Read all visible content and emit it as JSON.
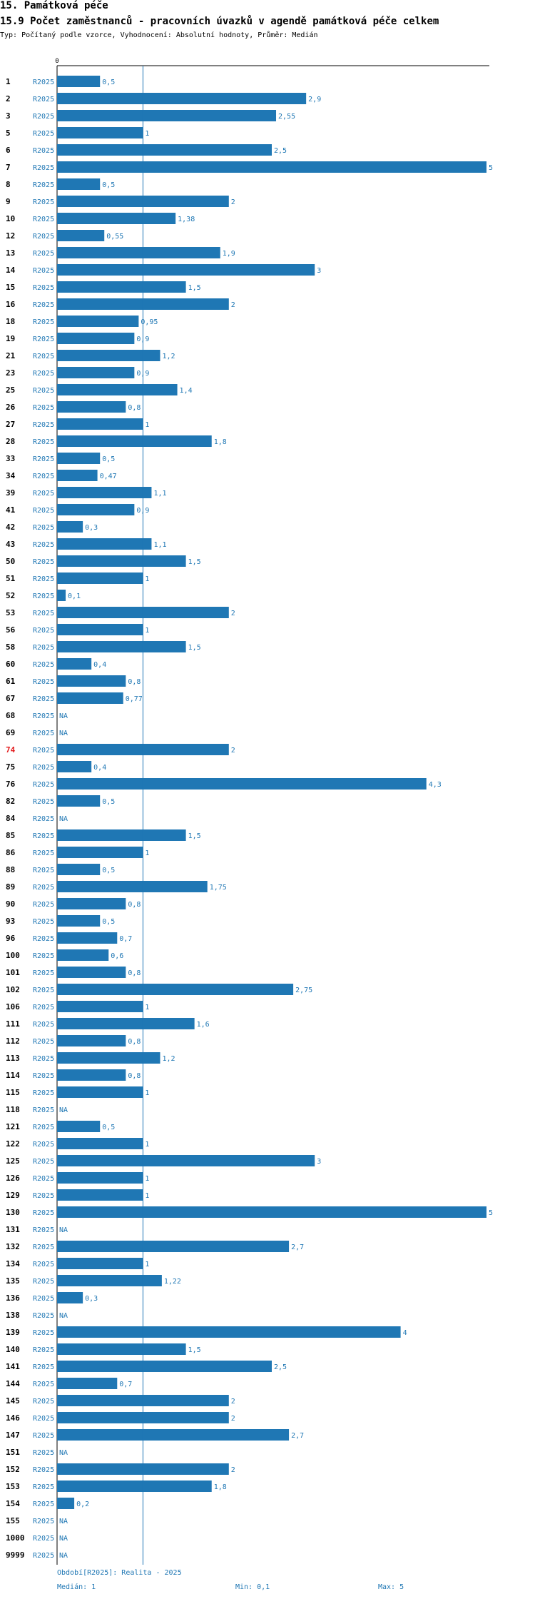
{
  "header": {
    "section": "15. Památková péče",
    "title": "15.9 Počet zaměstnanců - pracovních úvazků v agendě památková péče celkem",
    "subtitle": "Typ: Počítaný podle vzorce, Vyhodnocení: Absolutní hodnoty, Průměr: Medián"
  },
  "footer": {
    "period": "Období[R2025]: Realita - 2025",
    "median": "Medián: 1",
    "min": "Min: 0,1",
    "max": "Max: 5"
  },
  "colors": {
    "bar": "#1f77b4",
    "text": "#1f77b4",
    "highlight": "#e31a1c"
  },
  "chart_data": {
    "type": "bar",
    "orientation": "horizontal",
    "axis_zero_label": "0",
    "median": 1,
    "xlim": [
      0,
      5
    ],
    "series_label": "R2025",
    "highlight_category": "74",
    "categories": [
      "1",
      "2",
      "3",
      "5",
      "6",
      "7",
      "8",
      "9",
      "10",
      "12",
      "13",
      "14",
      "15",
      "16",
      "18",
      "19",
      "21",
      "23",
      "25",
      "26",
      "27",
      "28",
      "33",
      "34",
      "39",
      "41",
      "42",
      "43",
      "50",
      "51",
      "52",
      "53",
      "56",
      "58",
      "60",
      "61",
      "67",
      "68",
      "69",
      "74",
      "75",
      "76",
      "82",
      "84",
      "85",
      "86",
      "88",
      "89",
      "90",
      "93",
      "96",
      "100",
      "101",
      "102",
      "106",
      "111",
      "112",
      "113",
      "114",
      "115",
      "118",
      "121",
      "122",
      "125",
      "126",
      "129",
      "130",
      "131",
      "132",
      "134",
      "135",
      "136",
      "138",
      "139",
      "140",
      "141",
      "144",
      "145",
      "146",
      "147",
      "151",
      "152",
      "153",
      "154",
      "155",
      "1000",
      "9999"
    ],
    "values": [
      0.5,
      2.9,
      2.55,
      1,
      2.5,
      5,
      0.5,
      2,
      1.38,
      0.55,
      1.9,
      3,
      1.5,
      2,
      0.95,
      0.9,
      1.2,
      0.9,
      1.4,
      0.8,
      1,
      1.8,
      0.5,
      0.47,
      1.1,
      0.9,
      0.3,
      1.1,
      1.5,
      1,
      0.1,
      2,
      1,
      1.5,
      0.4,
      0.8,
      0.77,
      null,
      null,
      2,
      0.4,
      4.3,
      0.5,
      null,
      1.5,
      1,
      0.5,
      1.75,
      0.8,
      0.5,
      0.7,
      0.6,
      0.8,
      2.75,
      1,
      1.6,
      0.8,
      1.2,
      0.8,
      1,
      null,
      0.5,
      1,
      3,
      1,
      1,
      5,
      null,
      2.7,
      1,
      1.22,
      0.3,
      null,
      4,
      1.5,
      2.5,
      0.7,
      2,
      2,
      2.7,
      null,
      2,
      1.8,
      0.2,
      null,
      null,
      null
    ],
    "value_labels": [
      "0,5",
      "2,9",
      "2,55",
      "1",
      "2,5",
      "5",
      "0,5",
      "2",
      "1,38",
      "0,55",
      "1,9",
      "3",
      "1,5",
      "2",
      "0,95",
      "0,9",
      "1,2",
      "0,9",
      "1,4",
      "0,8",
      "1",
      "1,8",
      "0,5",
      "0,47",
      "1,1",
      "0,9",
      "0,3",
      "1,1",
      "1,5",
      "1",
      "0,1",
      "2",
      "1",
      "1,5",
      "0,4",
      "0,8",
      "0,77",
      "NA",
      "NA",
      "2",
      "0,4",
      "4,3",
      "0,5",
      "NA",
      "1,5",
      "1",
      "0,5",
      "1,75",
      "0,8",
      "0,5",
      "0,7",
      "0,6",
      "0,8",
      "2,75",
      "1",
      "1,6",
      "0,8",
      "1,2",
      "0,8",
      "1",
      "NA",
      "0,5",
      "1",
      "3",
      "1",
      "1",
      "5",
      "NA",
      "2,7",
      "1",
      "1,22",
      "0,3",
      "NA",
      "4",
      "1,5",
      "2,5",
      "0,7",
      "2",
      "2",
      "2,7",
      "NA",
      "2",
      "1,8",
      "0,2",
      "NA",
      "NA",
      "NA"
    ]
  }
}
